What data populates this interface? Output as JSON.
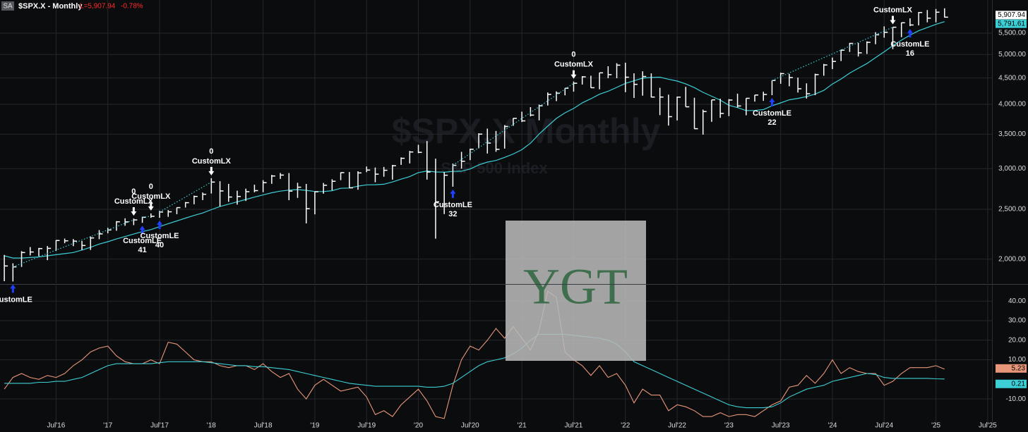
{
  "chart_data": {
    "type": "ohlc",
    "badge": "SA",
    "title": "$SPX.X - Monthly",
    "last_text": "L=5,907.94",
    "change": "-0.78%",
    "watermark": "$SPX.X Monthly",
    "watermark_sub": "S&P 500 Index",
    "overlay": "YGT",
    "log": true,
    "grid": true,
    "bar_color": "#ffffff",
    "categories": [
      null,
      null,
      null,
      null,
      null,
      null,
      "Jul'16",
      null,
      null,
      null,
      null,
      null,
      "'17",
      null,
      null,
      null,
      null,
      null,
      "Jul'17",
      null,
      null,
      null,
      null,
      null,
      "'18",
      null,
      null,
      null,
      null,
      null,
      "Jul'18",
      null,
      null,
      null,
      null,
      null,
      "'19",
      null,
      null,
      null,
      null,
      null,
      "Jul'19",
      null,
      null,
      null,
      null,
      null,
      "'20",
      null,
      null,
      null,
      null,
      null,
      "Jul'20",
      null,
      null,
      null,
      null,
      null,
      "'21",
      null,
      null,
      null,
      null,
      null,
      "Jul'21",
      null,
      null,
      null,
      null,
      null,
      "'22",
      null,
      null,
      null,
      null,
      null,
      "Jul'22",
      null,
      null,
      null,
      null,
      null,
      "'23",
      null,
      null,
      null,
      null,
      null,
      "Jul'23",
      null,
      null,
      null,
      null,
      null,
      "'24",
      null,
      null,
      null,
      null,
      null,
      "Jul'24",
      null,
      null,
      null,
      null,
      null,
      "'25",
      null,
      null,
      null,
      null,
      null,
      "Jul'25"
    ],
    "high": [
      2038,
      1963,
      2073,
      2111,
      2103,
      2121,
      2178,
      2193,
      2188,
      2169,
      2214,
      2278,
      2301,
      2371,
      2401,
      2399,
      2419,
      2454,
      2484,
      2491,
      2520,
      2582,
      2658,
      2695,
      2873,
      2835,
      2801,
      2717,
      2742,
      2791,
      2848,
      2916,
      2941,
      2940,
      2815,
      2800,
      2708,
      2813,
      2860,
      2949,
      2954,
      2964,
      3028,
      3014,
      3022,
      3050,
      3154,
      3247,
      3337,
      3393,
      3136,
      2954,
      3068,
      3233,
      3280,
      3514,
      3588,
      3550,
      3645,
      3760,
      3870,
      3950,
      3994,
      4218,
      4238,
      4302,
      4429,
      4537,
      4546,
      4608,
      4743,
      4808,
      4819,
      4595,
      4637,
      4594,
      4307,
      4177,
      4141,
      4325,
      4119,
      3906,
      4080,
      4101,
      4094,
      4195,
      4110,
      4170,
      4231,
      4449,
      4607,
      4584,
      4508,
      4393,
      4587,
      4793,
      4931,
      5111,
      5265,
      5264,
      5302,
      5524,
      5669,
      5651,
      5767,
      5878,
      6045,
      6100,
      6128,
      6147,
      null,
      null,
      null,
      null,
      null
    ],
    "low": [
      1812,
      1810,
      1932,
      2034,
      2026,
      1991,
      2075,
      2148,
      2120,
      2084,
      2084,
      2187,
      2245,
      2271,
      2322,
      2329,
      2353,
      2406,
      2407,
      2417,
      2446,
      2520,
      2557,
      2605,
      2683,
      2533,
      2585,
      2553,
      2595,
      2698,
      2699,
      2802,
      2864,
      2604,
      2631,
      2347,
      2444,
      2681,
      2722,
      2848,
      2750,
      2729,
      2952,
      2822,
      2892,
      2855,
      3050,
      3070,
      3214,
      2855,
      2192,
      2447,
      2766,
      2999,
      3115,
      3284,
      3209,
      3234,
      3280,
      3633,
      3695,
      3789,
      3723,
      3978,
      4057,
      4164,
      4233,
      4370,
      4306,
      4278,
      4496,
      4495,
      4223,
      4115,
      4158,
      4124,
      3811,
      3637,
      3721,
      3955,
      3584,
      3492,
      3698,
      3765,
      3794,
      3943,
      3808,
      4049,
      4062,
      4167,
      4385,
      4336,
      4216,
      4104,
      4167,
      4546,
      4682,
      4854,
      5057,
      4954,
      5011,
      5234,
      5390,
      5120,
      5403,
      5675,
      5696,
      5773,
      5773,
      5900,
      null,
      null,
      null,
      null,
      null
    ],
    "close": [
      1940,
      1932,
      2060,
      2065,
      2097,
      2099,
      2174,
      2171,
      2168,
      2126,
      2199,
      2239,
      2279,
      2364,
      2363,
      2384,
      2412,
      2423,
      2470,
      2472,
      2519,
      2575,
      2648,
      2674,
      2824,
      2714,
      2641,
      2648,
      2705,
      2718,
      2816,
      2902,
      2914,
      2712,
      2760,
      2507,
      2704,
      2784,
      2834,
      2946,
      2752,
      2942,
      2980,
      2926,
      2977,
      3038,
      3141,
      3231,
      3226,
      2954,
      2585,
      2912,
      3044,
      3100,
      3271,
      3500,
      3363,
      3270,
      3622,
      3756,
      3714,
      3811,
      3973,
      4181,
      4204,
      4298,
      4395,
      4523,
      4308,
      4605,
      4567,
      4766,
      4516,
      4374,
      4530,
      4132,
      4132,
      3785,
      4130,
      3955,
      3586,
      3872,
      4080,
      3840,
      4077,
      3970,
      4109,
      4169,
      4180,
      4450,
      4589,
      4508,
      4288,
      4194,
      4568,
      4770,
      4846,
      5096,
      5254,
      5036,
      5278,
      5460,
      5522,
      5648,
      5762,
      5705,
      6032,
      5882,
      6041,
      5907.94,
      null,
      null,
      null,
      null,
      null
    ],
    "close_label": "5,907.94",
    "ma": {
      "color": "#3ccfd6",
      "last_label": "5,791.61",
      "values": [
        2030,
        2010,
        2010,
        2015,
        2020,
        2030,
        2040,
        2050,
        2060,
        2083,
        2109,
        2140,
        2162,
        2189,
        2213,
        2238,
        2262,
        2283,
        2313,
        2344,
        2373,
        2403,
        2432,
        2459,
        2496,
        2531,
        2558,
        2585,
        2613,
        2640,
        2666,
        2692,
        2712,
        2724,
        2731,
        2721,
        2708,
        2707,
        2717,
        2746,
        2750,
        2772,
        2789,
        2791,
        2797,
        2825,
        2861,
        2894,
        2946,
        2968,
        2955,
        2952,
        2962,
        2965,
        2994,
        3049,
        3088,
        3111,
        3154,
        3202,
        3265,
        3362,
        3501,
        3628,
        3755,
        3850,
        3926,
        4027,
        4101,
        4185,
        4240,
        4315,
        4393,
        4445,
        4496,
        4511,
        4517,
        4475,
        4439,
        4382,
        4310,
        4220,
        4148,
        4075,
        3982,
        3941,
        3889,
        3892,
        3906,
        3973,
        4025,
        4081,
        4108,
        4140,
        4188,
        4258,
        4380,
        4480,
        4600,
        4700,
        4800,
        4930,
        5060,
        5200,
        5330,
        5450,
        5560,
        5640,
        5720,
        5791.61,
        null,
        null,
        null,
        null,
        null
      ]
    },
    "ylim": [
      1795,
      6380
    ],
    "yticks": [
      {
        "value": 2000,
        "label": "2,000.00"
      },
      {
        "value": 2500,
        "label": "2,500.00"
      },
      {
        "value": 3000,
        "label": "3,000.00"
      },
      {
        "value": 3500,
        "label": "3,500.00"
      },
      {
        "value": 4000,
        "label": "4,000.00"
      },
      {
        "value": 4500,
        "label": "4,500.00"
      },
      {
        "value": 5000,
        "label": "5,000.00"
      },
      {
        "value": 5500,
        "label": "5,500.00"
      }
    ],
    "signals": [
      {
        "label": "CustomLE",
        "x": 1
      },
      {
        "label": "CustomLX",
        "count": 0,
        "x": 15
      },
      {
        "label": "CustomLE",
        "count": 41,
        "x": 16
      },
      {
        "label": "CustomLX",
        "count": 0,
        "x": 17
      },
      {
        "label": "CustomLE",
        "count": 40,
        "x": 18
      },
      {
        "label": "CustomLX",
        "count": 0,
        "x": 24
      },
      {
        "label": "CustomLE",
        "count": 32,
        "x": 52
      },
      {
        "label": "CustomLX",
        "count": 0,
        "x": 66
      },
      {
        "label": "CustomLE",
        "count": 22,
        "x": 89
      },
      {
        "label": "CustomLX",
        "x": 103
      },
      {
        "label": "CustomLE",
        "count": 16,
        "x": 105
      }
    ],
    "lower": {
      "ylim": [
        -24,
        48
      ],
      "yticks": [
        {
          "value": 40,
          "label": "40.00"
        },
        {
          "value": 30,
          "label": "30.00"
        },
        {
          "value": 20,
          "label": "20.00"
        },
        {
          "value": 10,
          "label": "10.00"
        },
        {
          "value": -10,
          "label": "-10.00"
        }
      ],
      "series": [
        {
          "color": "#e8967a",
          "values": [
            -5,
            1,
            3,
            1,
            0,
            2,
            1,
            3,
            7,
            10,
            14,
            16,
            17,
            12,
            9,
            8,
            8,
            10,
            8,
            19,
            18,
            14,
            10,
            9,
            9,
            7,
            6,
            7,
            7,
            5,
            8,
            4,
            1,
            3,
            -5,
            -10,
            -3,
            0,
            -3,
            -6,
            -5,
            -4,
            -9,
            -18,
            -16,
            -19,
            -13,
            -9,
            -5,
            -11,
            -19,
            -20,
            -3,
            10,
            17,
            15,
            20,
            26,
            21,
            27,
            21,
            15,
            25,
            45,
            42,
            14,
            10,
            7,
            2,
            7,
            1,
            3,
            -3,
            -12,
            -5,
            -8,
            -8,
            -16,
            -13,
            -14,
            -16,
            -19,
            -19,
            -17,
            -19,
            -18,
            -18,
            -19,
            -16,
            -13,
            -11,
            -4,
            -3,
            2,
            -2,
            3,
            10,
            3,
            6,
            4,
            3,
            3,
            -3,
            -1,
            3,
            6,
            6,
            6,
            7,
            5.23,
            null,
            null,
            null,
            null,
            null
          ]
        },
        {
          "color": "#3ccfd6",
          "values": [
            -2,
            -2,
            -2,
            -2,
            -1.5,
            -1.5,
            -1,
            -1,
            0,
            1,
            3,
            5,
            7,
            8,
            8,
            8,
            8,
            8,
            8.5,
            9,
            9,
            9,
            9,
            9,
            8.5,
            8,
            7.5,
            7,
            7,
            6.5,
            6.5,
            6,
            5.5,
            5,
            4,
            3,
            2,
            1,
            0,
            -1,
            -2,
            -2.5,
            -3,
            -3.5,
            -3.5,
            -3.5,
            -3.5,
            -3.5,
            -3.5,
            -4,
            -4,
            -3.5,
            -2,
            1,
            4,
            7,
            9,
            10,
            11,
            13,
            16,
            20,
            23,
            23,
            23,
            23,
            22.5,
            22,
            21.5,
            21,
            20,
            18,
            14,
            9,
            7,
            5,
            3,
            1,
            -1,
            -3,
            -5,
            -7,
            -9,
            -11,
            -13,
            -14,
            -14.5,
            -14.5,
            -14.5,
            -14,
            -12,
            -9,
            -7,
            -5,
            -4,
            -3,
            -1,
            0,
            1,
            2,
            3,
            2.5,
            1,
            0.5,
            0.5,
            0.5,
            0.5,
            0.5,
            0.3,
            0.21,
            null,
            null,
            null,
            null,
            null
          ]
        }
      ]
    }
  }
}
